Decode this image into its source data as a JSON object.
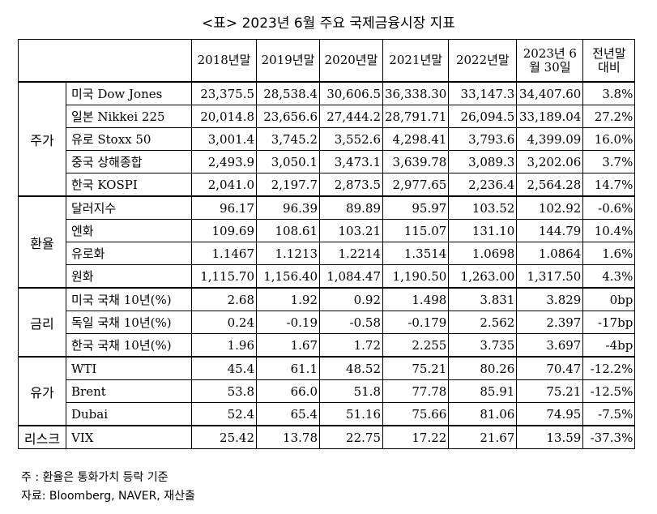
{
  "title": "<표> 2023년 6월 주요 국제금융시장 지표",
  "columns": [
    "2018년말",
    "2019년말",
    "2020년말",
    "2021년말",
    "2022년말",
    "2023년 6월 30일",
    "전년말 대비"
  ],
  "groups": [
    {
      "name": "주가",
      "rows": [
        {
          "label": "미국 Dow Jones",
          "values": [
            "23,375.5",
            "28,538.4",
            "30,606.5",
            "36,338.30",
            "33,147.3",
            "34,407.60",
            "3.8%"
          ]
        },
        {
          "label": "일본 Nikkei 225",
          "values": [
            "20,014.8",
            "23,656.6",
            "27,444.2",
            "28,791.71",
            "26,094.5",
            "33,189.04",
            "27.2%"
          ]
        },
        {
          "label": "유로 Stoxx 50",
          "values": [
            "3,001.4",
            "3,745.2",
            "3,552.6",
            "4,298.41",
            "3,793.6",
            "4,399.09",
            "16.0%"
          ]
        },
        {
          "label": "중국 상해종합",
          "values": [
            "2,493.9",
            "3,050.1",
            "3,473.1",
            "3,639.78",
            "3,089.3",
            "3,202.06",
            "3.7%"
          ]
        },
        {
          "label": "한국 KOSPI",
          "values": [
            "2,041.0",
            "2,197.7",
            "2,873.5",
            "2,977.65",
            "2,236.4",
            "2,564.28",
            "14.7%"
          ]
        }
      ]
    },
    {
      "name": "환율",
      "rows": [
        {
          "label": "달러지수",
          "values": [
            "96.17",
            "96.39",
            "89.89",
            "95.97",
            "103.52",
            "102.92",
            "-0.6%"
          ]
        },
        {
          "label": "엔화",
          "values": [
            "109.69",
            "108.61",
            "103.21",
            "115.07",
            "131.10",
            "144.79",
            "10.4%"
          ]
        },
        {
          "label": "유로화",
          "values": [
            "1.1467",
            "1.1213",
            "1.2214",
            "1.3514",
            "1.0698",
            "1.0864",
            "1.6%"
          ]
        },
        {
          "label": "원화",
          "values": [
            "1,115.70",
            "1,156.40",
            "1,084.47",
            "1,190.50",
            "1,263.00",
            "1,317.50",
            "4.3%"
          ]
        }
      ]
    },
    {
      "name": "금리",
      "rows": [
        {
          "label": "미국 국채 10년(%)",
          "values": [
            "2.68",
            "1.92",
            "0.92",
            "1.498",
            "3.831",
            "3.829",
            "0bp"
          ]
        },
        {
          "label": "독일 국채 10년(%)",
          "values": [
            "0.24",
            "-0.19",
            "-0.58",
            "-0.179",
            "2.562",
            "2.397",
            "-17bp"
          ]
        },
        {
          "label": "한국 국채 10년(%)",
          "values": [
            "1.96",
            "1.67",
            "1.72",
            "2.255",
            "3.735",
            "3.697",
            "-4bp"
          ]
        }
      ]
    },
    {
      "name": "유가",
      "rows": [
        {
          "label": "WTI",
          "values": [
            "45.4",
            "61.1",
            "48.52",
            "75.21",
            "80.26",
            "70.47",
            "-12.2%"
          ]
        },
        {
          "label": "Brent",
          "values": [
            "53.8",
            "66.0",
            "51.8",
            "77.78",
            "85.91",
            "75.21",
            "-12.5%"
          ]
        },
        {
          "label": "Dubai",
          "values": [
            "52.4",
            "65.4",
            "51.16",
            "75.66",
            "81.06",
            "74.95",
            "-7.5%"
          ]
        }
      ]
    },
    {
      "name": "리스크",
      "rows": [
        {
          "label": "VIX",
          "values": [
            "25.42",
            "13.78",
            "22.75",
            "17.22",
            "21.67",
            "13.59",
            "-37.3%"
          ]
        }
      ]
    }
  ],
  "notes": [
    "주 : 환율은 통화가치 등락 기준",
    "자료: Bloomberg, NAVER, 재산출"
  ]
}
